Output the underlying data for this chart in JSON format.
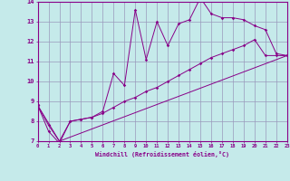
{
  "xlabel": "Windchill (Refroidissement éolien,°C)",
  "bg_color": "#c5eaea",
  "line_color": "#880088",
  "grid_color": "#9999bb",
  "xmin": 0,
  "xmax": 23,
  "ymin": 7,
  "ymax": 14,
  "line1_x": [
    0,
    1,
    2,
    3,
    4,
    5,
    6,
    7,
    8,
    9,
    10,
    11,
    12,
    13,
    14,
    15,
    16,
    17,
    18,
    19,
    20,
    21,
    22,
    23
  ],
  "line1_y": [
    8.8,
    7.5,
    6.9,
    8.0,
    8.1,
    8.2,
    8.5,
    10.4,
    9.8,
    13.6,
    11.1,
    13.0,
    11.8,
    12.9,
    13.1,
    14.2,
    13.4,
    13.2,
    13.2,
    13.1,
    12.8,
    12.6,
    11.4,
    11.3
  ],
  "line2_x": [
    0,
    1,
    2,
    3,
    4,
    5,
    6,
    7,
    8,
    9,
    10,
    11,
    12,
    13,
    14,
    15,
    16,
    17,
    18,
    19,
    20,
    21,
    22,
    23
  ],
  "line2_y": [
    8.8,
    7.8,
    7.0,
    8.0,
    8.1,
    8.2,
    8.4,
    8.7,
    9.0,
    9.2,
    9.5,
    9.7,
    10.0,
    10.3,
    10.6,
    10.9,
    11.2,
    11.4,
    11.6,
    11.8,
    12.1,
    11.3,
    11.3,
    11.3
  ],
  "line3_x": [
    0,
    2,
    23
  ],
  "line3_y": [
    8.8,
    7.0,
    11.3
  ],
  "xtick_labels": [
    "0",
    "1",
    "2",
    "3",
    "4",
    "5",
    "6",
    "7",
    "8",
    "9",
    "10",
    "11",
    "12",
    "13",
    "14",
    "15",
    "16",
    "17",
    "18",
    "19",
    "20",
    "21",
    "22",
    "23"
  ]
}
